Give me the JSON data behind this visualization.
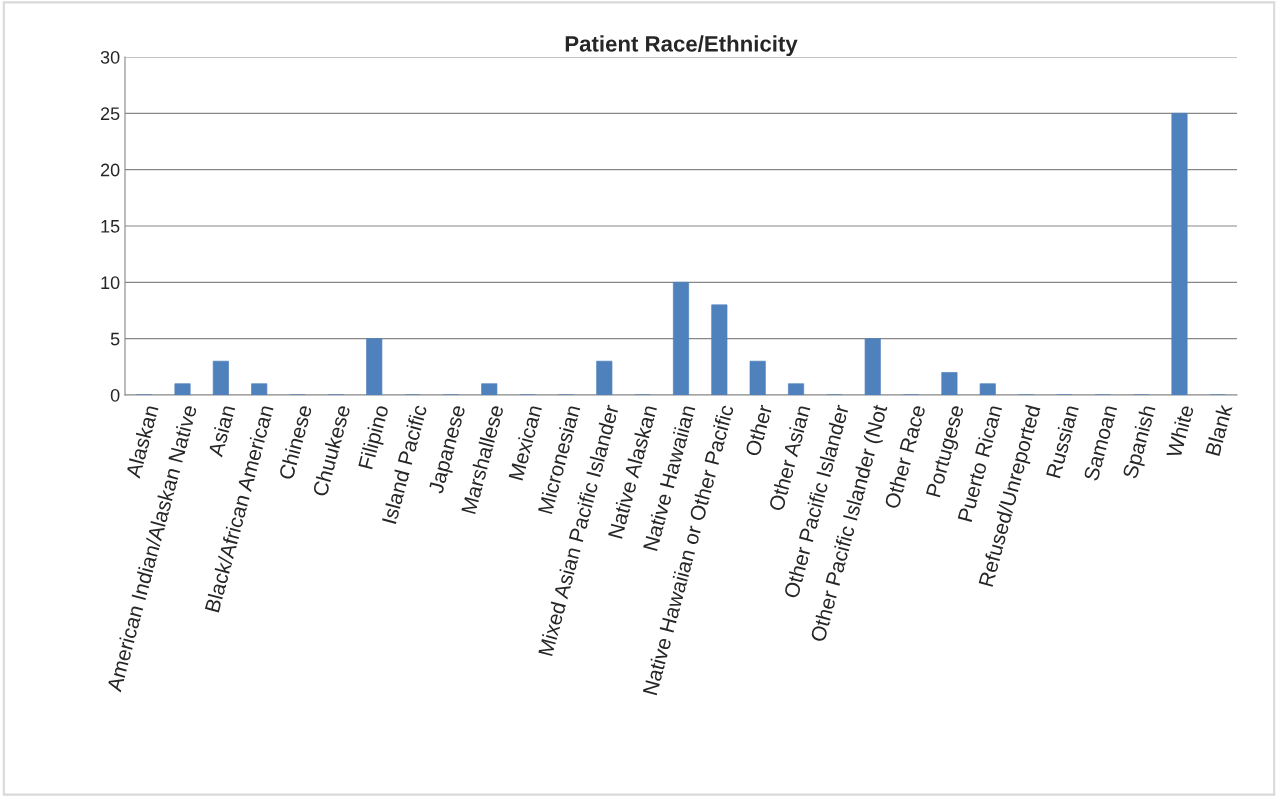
{
  "chart_data": {
    "type": "bar",
    "title": "Patient Race/Ethnicity",
    "categories": [
      "Alaskan",
      "American Indian/Alaskan Native",
      "Asian",
      "Black/African American",
      "Chinese",
      "Chuukese",
      "Filipino",
      "Island Pacific",
      "Japanese",
      "Marshallese",
      "Mexican",
      "Micronesian",
      "Mixed Asian Pacific Islander",
      "Native Alaskan",
      "Native Hawaiian",
      "Native Hawaiian or Other Pacific",
      "Other",
      "Other Asian",
      "Other Pacific Islander",
      "Other Pacific Islander (Not",
      "Other Race",
      "Portugese",
      "Puerto Rican",
      "Refused/Unreported",
      "Russian",
      "Samoan",
      "Spanish",
      "White",
      "Blank"
    ],
    "values": [
      0,
      1,
      3,
      1,
      0,
      0,
      5,
      0,
      0,
      1,
      0,
      0,
      3,
      0,
      10,
      8,
      3,
      1,
      0,
      5,
      0,
      2,
      1,
      0,
      0,
      0,
      0,
      25,
      0
    ],
    "color": "#4f81bd",
    "ylim": [
      0,
      30
    ],
    "yticks": [
      0,
      5,
      10,
      15,
      20,
      25,
      30
    ],
    "grid": "y",
    "legend": false
  }
}
